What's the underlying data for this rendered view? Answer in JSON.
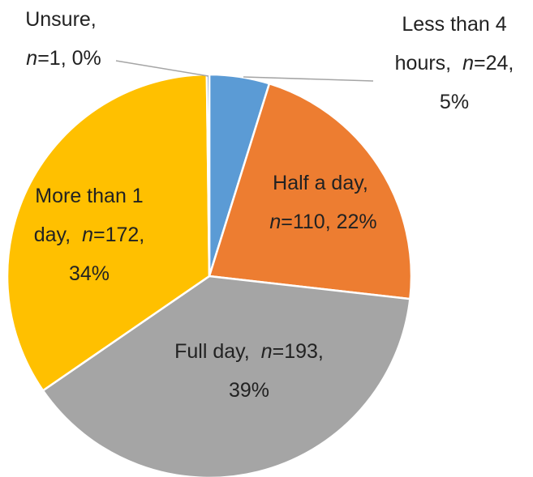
{
  "chart_data": {
    "type": "pie",
    "categories": [
      "Less than 4 hours,",
      "Half a day,",
      "Full day,",
      "More than 1 day,",
      "Unsure,"
    ],
    "values": [
      24,
      110,
      193,
      172,
      1
    ],
    "value_labels": [
      "n=24, 5%",
      "n=110, 22%",
      "n=193, 39%",
      "n=172, 34%",
      "n=1, 0%"
    ],
    "colors": [
      "#5b9bd5",
      "#ed7d31",
      "#a5a5a5",
      "#ffc000",
      "#4472c4"
    ]
  }
}
